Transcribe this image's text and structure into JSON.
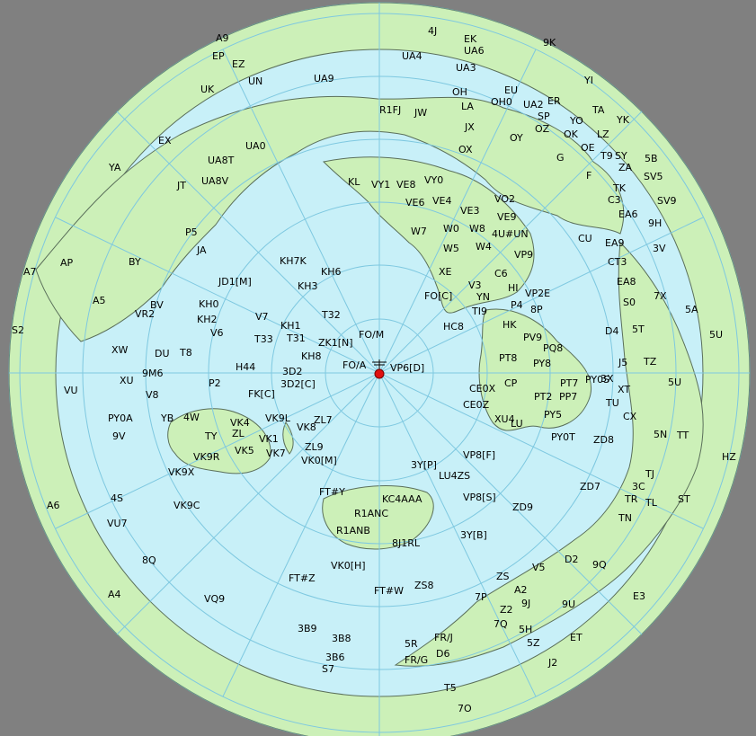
{
  "map": {
    "projection": "azimuthal-equidistant",
    "center_label": "FO/A",
    "colors": {
      "background": "#808080",
      "ocean": "#c8f0f8",
      "land": "#ccf0b8",
      "border": "#5a6f5a",
      "grid": "#7ec8e0",
      "center_marker": "#e01010"
    },
    "prefixes": [
      "A9",
      "EP",
      "EZ",
      "UK",
      "UN",
      "UA9",
      "4J",
      "EK",
      "UA6",
      "UA4",
      "UA3",
      "9K",
      "OH",
      "LA",
      "EU",
      "OH0",
      "UA2",
      "ER",
      "YI",
      "R1FJ",
      "JW",
      "SP",
      "OZ",
      "YO",
      "TA",
      "YK",
      "JX",
      "OY",
      "OK",
      "LZ",
      "EX",
      "UA0",
      "OX",
      "G",
      "OE",
      "T9",
      "SY",
      "5B",
      "YA",
      "UA8T",
      "ZA",
      "SV5",
      "JT",
      "UA8V",
      "KL",
      "VY1",
      "VE8",
      "VY0",
      "F",
      "TK",
      "C3",
      "SV9",
      "VE6",
      "VE4",
      "VE3",
      "VO2",
      "EA6",
      "9H",
      "VE9",
      "P5",
      "W7",
      "W0",
      "W8",
      "4U#UN",
      "CU",
      "EA9",
      "3V",
      "JA",
      "W5",
      "W4",
      "VP9",
      "A7",
      "AP",
      "BY",
      "CT3",
      "JD1[M]",
      "KH7K",
      "KH6",
      "EA8",
      "KH3",
      "XE",
      "C6",
      "7X",
      "V3",
      "HI",
      "FO[C]",
      "YN",
      "P4",
      "VP2E",
      "A5",
      "BV",
      "KH0",
      "S0",
      "5A",
      "VR2",
      "T32",
      "TI9",
      "8P",
      "KH2",
      "V7",
      "HC8",
      "HK",
      "5T",
      "S2",
      "V6",
      "KH1",
      "D4",
      "5U",
      "T33",
      "T31",
      "FO/M",
      "PV9",
      "PQ8",
      "XW",
      "ZK1[N]",
      "DU",
      "T8",
      "KH8",
      "J5",
      "TZ",
      "PT8",
      "PY8",
      "9M6",
      "FO/A",
      "VP6[D]",
      "3D2",
      "PT7",
      "PY0S",
      "H44",
      "3X",
      "XU",
      "P2",
      "3D2[C]",
      "5U",
      "VU",
      "V8",
      "CE0X",
      "CP",
      "XT",
      "FK[C]",
      "PT2",
      "PP7",
      "TU",
      "CE0Z",
      "YB",
      "4W",
      "VK4",
      "VK9L",
      "ZL7",
      "PY5",
      "PY0A",
      "XU4",
      "LU",
      "CX",
      "TY",
      "VK8",
      "ZL",
      "VK1",
      "PY0T",
      "ZD8",
      "5N",
      "TT",
      "9V",
      "VK9R",
      "VK5",
      "VK7",
      "ZL9",
      "VP8[F]",
      "HZ",
      "VK9X",
      "VK0[M]",
      "3Y[P]",
      "LU4ZS",
      "TJ",
      "FT#Y",
      "ZD7",
      "3C",
      "4S",
      "KC4AAA",
      "VP8[S]",
      "TR",
      "TL",
      "A6",
      "VK9C",
      "R1ANC",
      "ZD9",
      "ST",
      "VU7",
      "TN",
      "R1ANB",
      "3Y[B]",
      "8J1RL",
      "8Q",
      "D2",
      "VK0[H]",
      "9Q",
      "V5",
      "FT#Z",
      "ZS",
      "A4",
      "FT#W",
      "ZS8",
      "A2",
      "VQ9",
      "7P",
      "9J",
      "E3",
      "Z2",
      "9U",
      "3B9",
      "7Q",
      "5H",
      "3B8",
      "FR/J",
      "5R",
      "ET",
      "5Z",
      "D6",
      "3B6",
      "FR/G",
      "J2",
      "S7",
      "T5",
      "7O"
    ]
  }
}
